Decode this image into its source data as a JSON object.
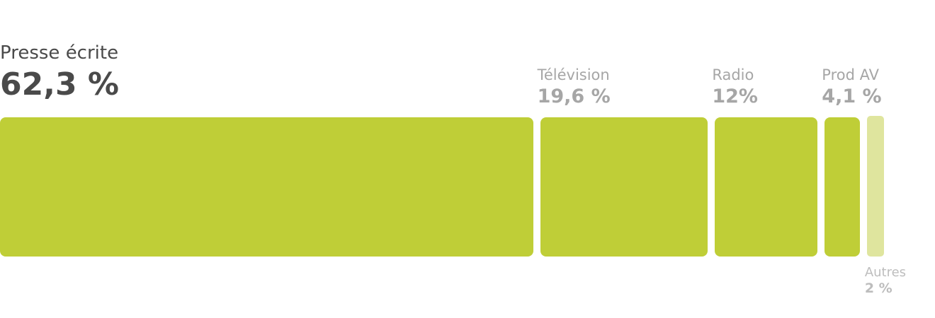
{
  "chart_data": {
    "type": "bar",
    "orientation": "stacked-horizontal",
    "categories": [
      "Presse écrite",
      "Télévision",
      "Radio",
      "Prod AV",
      "Autres"
    ],
    "values": [
      62.3,
      19.6,
      12,
      4.1,
      2
    ],
    "value_labels": [
      "62,3 %",
      "19,6 %",
      "12%",
      "4,1 %",
      "2 %"
    ],
    "unit": "%",
    "title": "",
    "xlabel": "",
    "ylabel": "",
    "legend": "none",
    "grid": false,
    "colors": {
      "bar": "#bfce37",
      "bar_minor": "#dfe59e",
      "label_primary": "#4a4a4a",
      "label_secondary": "#a6a6a6",
      "label_minor": "#bdbdbd"
    }
  }
}
